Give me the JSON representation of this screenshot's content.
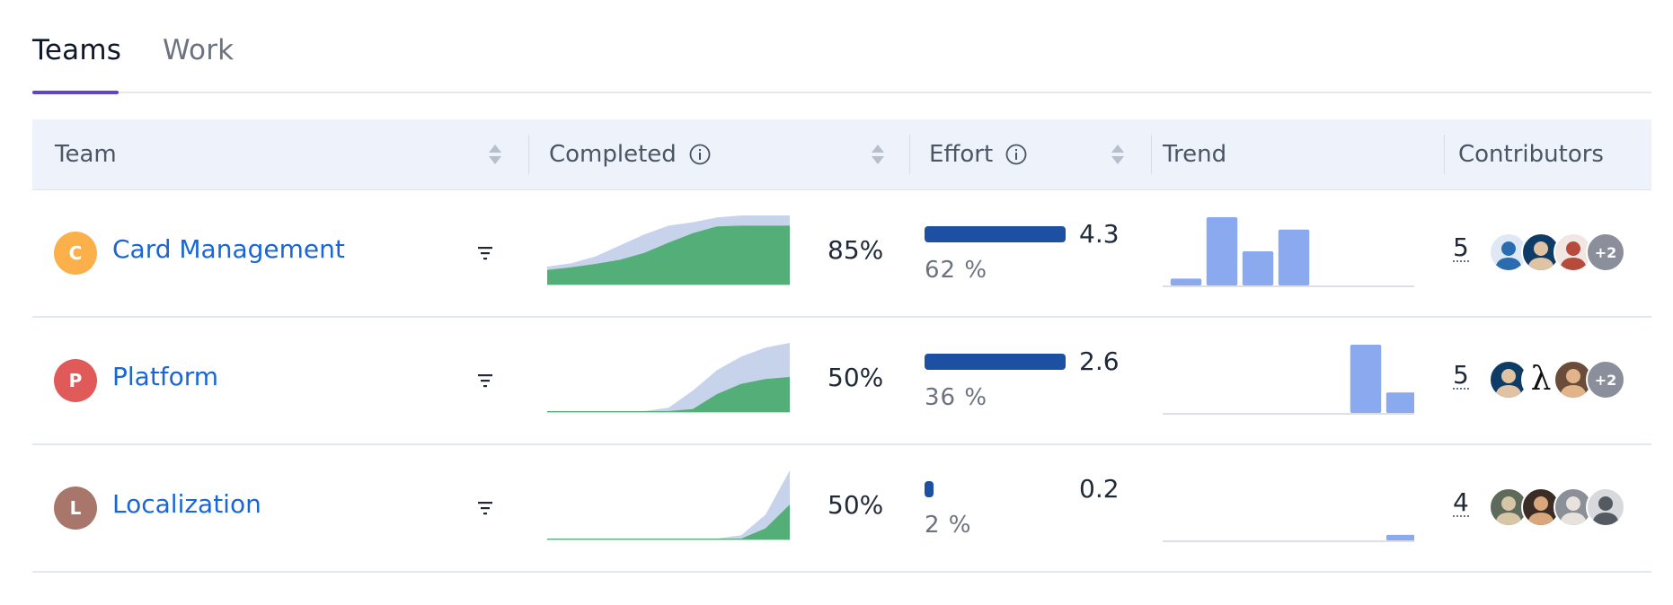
{
  "tabs": [
    {
      "label": "Teams",
      "active": true
    },
    {
      "label": "Work",
      "active": false
    }
  ],
  "columns": {
    "team": "Team",
    "completed": "Completed",
    "effort": "Effort",
    "trend": "Trend",
    "contributors": "Contributors"
  },
  "colors": {
    "link": "#1a66d6",
    "completed_area": "#54ae78",
    "scope_area": "#c7d2eb",
    "effort_bar": "#1d4fa3",
    "trend_bar": "#8aa9ef",
    "tab_accent": "#5b47c9"
  },
  "rows": [
    {
      "initial": "C",
      "avatar_color": "#fbb04a",
      "name": "Card Management",
      "completed_percent": "85%",
      "completed_series": {
        "scope": [
          0.25,
          0.3,
          0.4,
          0.56,
          0.72,
          0.85,
          0.9,
          0.97,
          1.0,
          1.0,
          1.0
        ],
        "done": [
          0.2,
          0.24,
          0.29,
          0.35,
          0.45,
          0.6,
          0.74,
          0.84,
          0.85,
          0.85,
          0.85
        ]
      },
      "effort_value": "4.3",
      "effort_percent_label": "62 %",
      "effort_fraction": 1.0,
      "trend": [
        0.1,
        1.0,
        0.5,
        0.82,
        0,
        0,
        0
      ],
      "contributor_count": "5",
      "contributors": [
        {
          "icon": "user-avatar-white-shirt-icon",
          "bg": "#dfe9f5",
          "fg": "#2b6cb0"
        },
        {
          "icon": "user-avatar-dark-icon",
          "bg": "#0f3c67",
          "fg": "#e0c3a3"
        },
        {
          "icon": "user-avatar-figure-icon",
          "bg": "#f0e7e3",
          "fg": "#b54a3d"
        },
        {
          "icon": "more-contributors-badge",
          "label": "+2"
        }
      ]
    },
    {
      "initial": "P",
      "avatar_color": "#e05a5a",
      "name": "Platform",
      "completed_percent": "50%",
      "completed_series": {
        "scope": [
          0,
          0,
          0,
          0,
          0,
          0.05,
          0.3,
          0.6,
          0.8,
          0.93,
          1.0
        ],
        "done": [
          0,
          0,
          0,
          0,
          0,
          0,
          0.03,
          0.25,
          0.4,
          0.47,
          0.5
        ]
      },
      "effort_value": "2.6",
      "effort_percent_label": "36 %",
      "effort_fraction": 1.0,
      "trend": [
        0,
        0,
        0,
        0,
        0,
        1.0,
        0.3
      ],
      "contributor_count": "5",
      "contributors": [
        {
          "icon": "user-avatar-dark-icon",
          "bg": "#0f3c67",
          "fg": "#e0c3a3"
        },
        {
          "icon": "lambda-avatar-icon",
          "label": "λ"
        },
        {
          "icon": "user-avatar-hat-icon",
          "bg": "#6b4b3a",
          "fg": "#e1b48a"
        },
        {
          "icon": "more-contributors-badge",
          "label": "+2"
        }
      ]
    },
    {
      "initial": "L",
      "avatar_color": "#a8766a",
      "name": "Localization",
      "completed_percent": "50%",
      "completed_series": {
        "scope": [
          0,
          0,
          0,
          0,
          0,
          0,
          0,
          0,
          0.05,
          0.35,
          1.0
        ],
        "done": [
          0,
          0,
          0,
          0,
          0,
          0,
          0,
          0,
          0,
          0.15,
          0.5
        ]
      },
      "effort_value": "0.2",
      "effort_percent_label": "2 %",
      "effort_fraction": 0.06,
      "trend": [
        0,
        0,
        0,
        0,
        0,
        0,
        0.08
      ],
      "contributor_count": "4",
      "contributors": [
        {
          "icon": "user-avatar-outdoor-icon",
          "bg": "#5e6b5a",
          "fg": "#d6c6a6"
        },
        {
          "icon": "user-avatar-beard-icon",
          "bg": "#3b2d25",
          "fg": "#d9a77b"
        },
        {
          "icon": "user-avatar-group-icon",
          "bg": "#8a8f98",
          "fg": "#e7e2dc"
        },
        {
          "icon": "user-avatar-gray-icon",
          "bg": "#d7d9dc",
          "fg": "#545a62"
        }
      ]
    }
  ]
}
